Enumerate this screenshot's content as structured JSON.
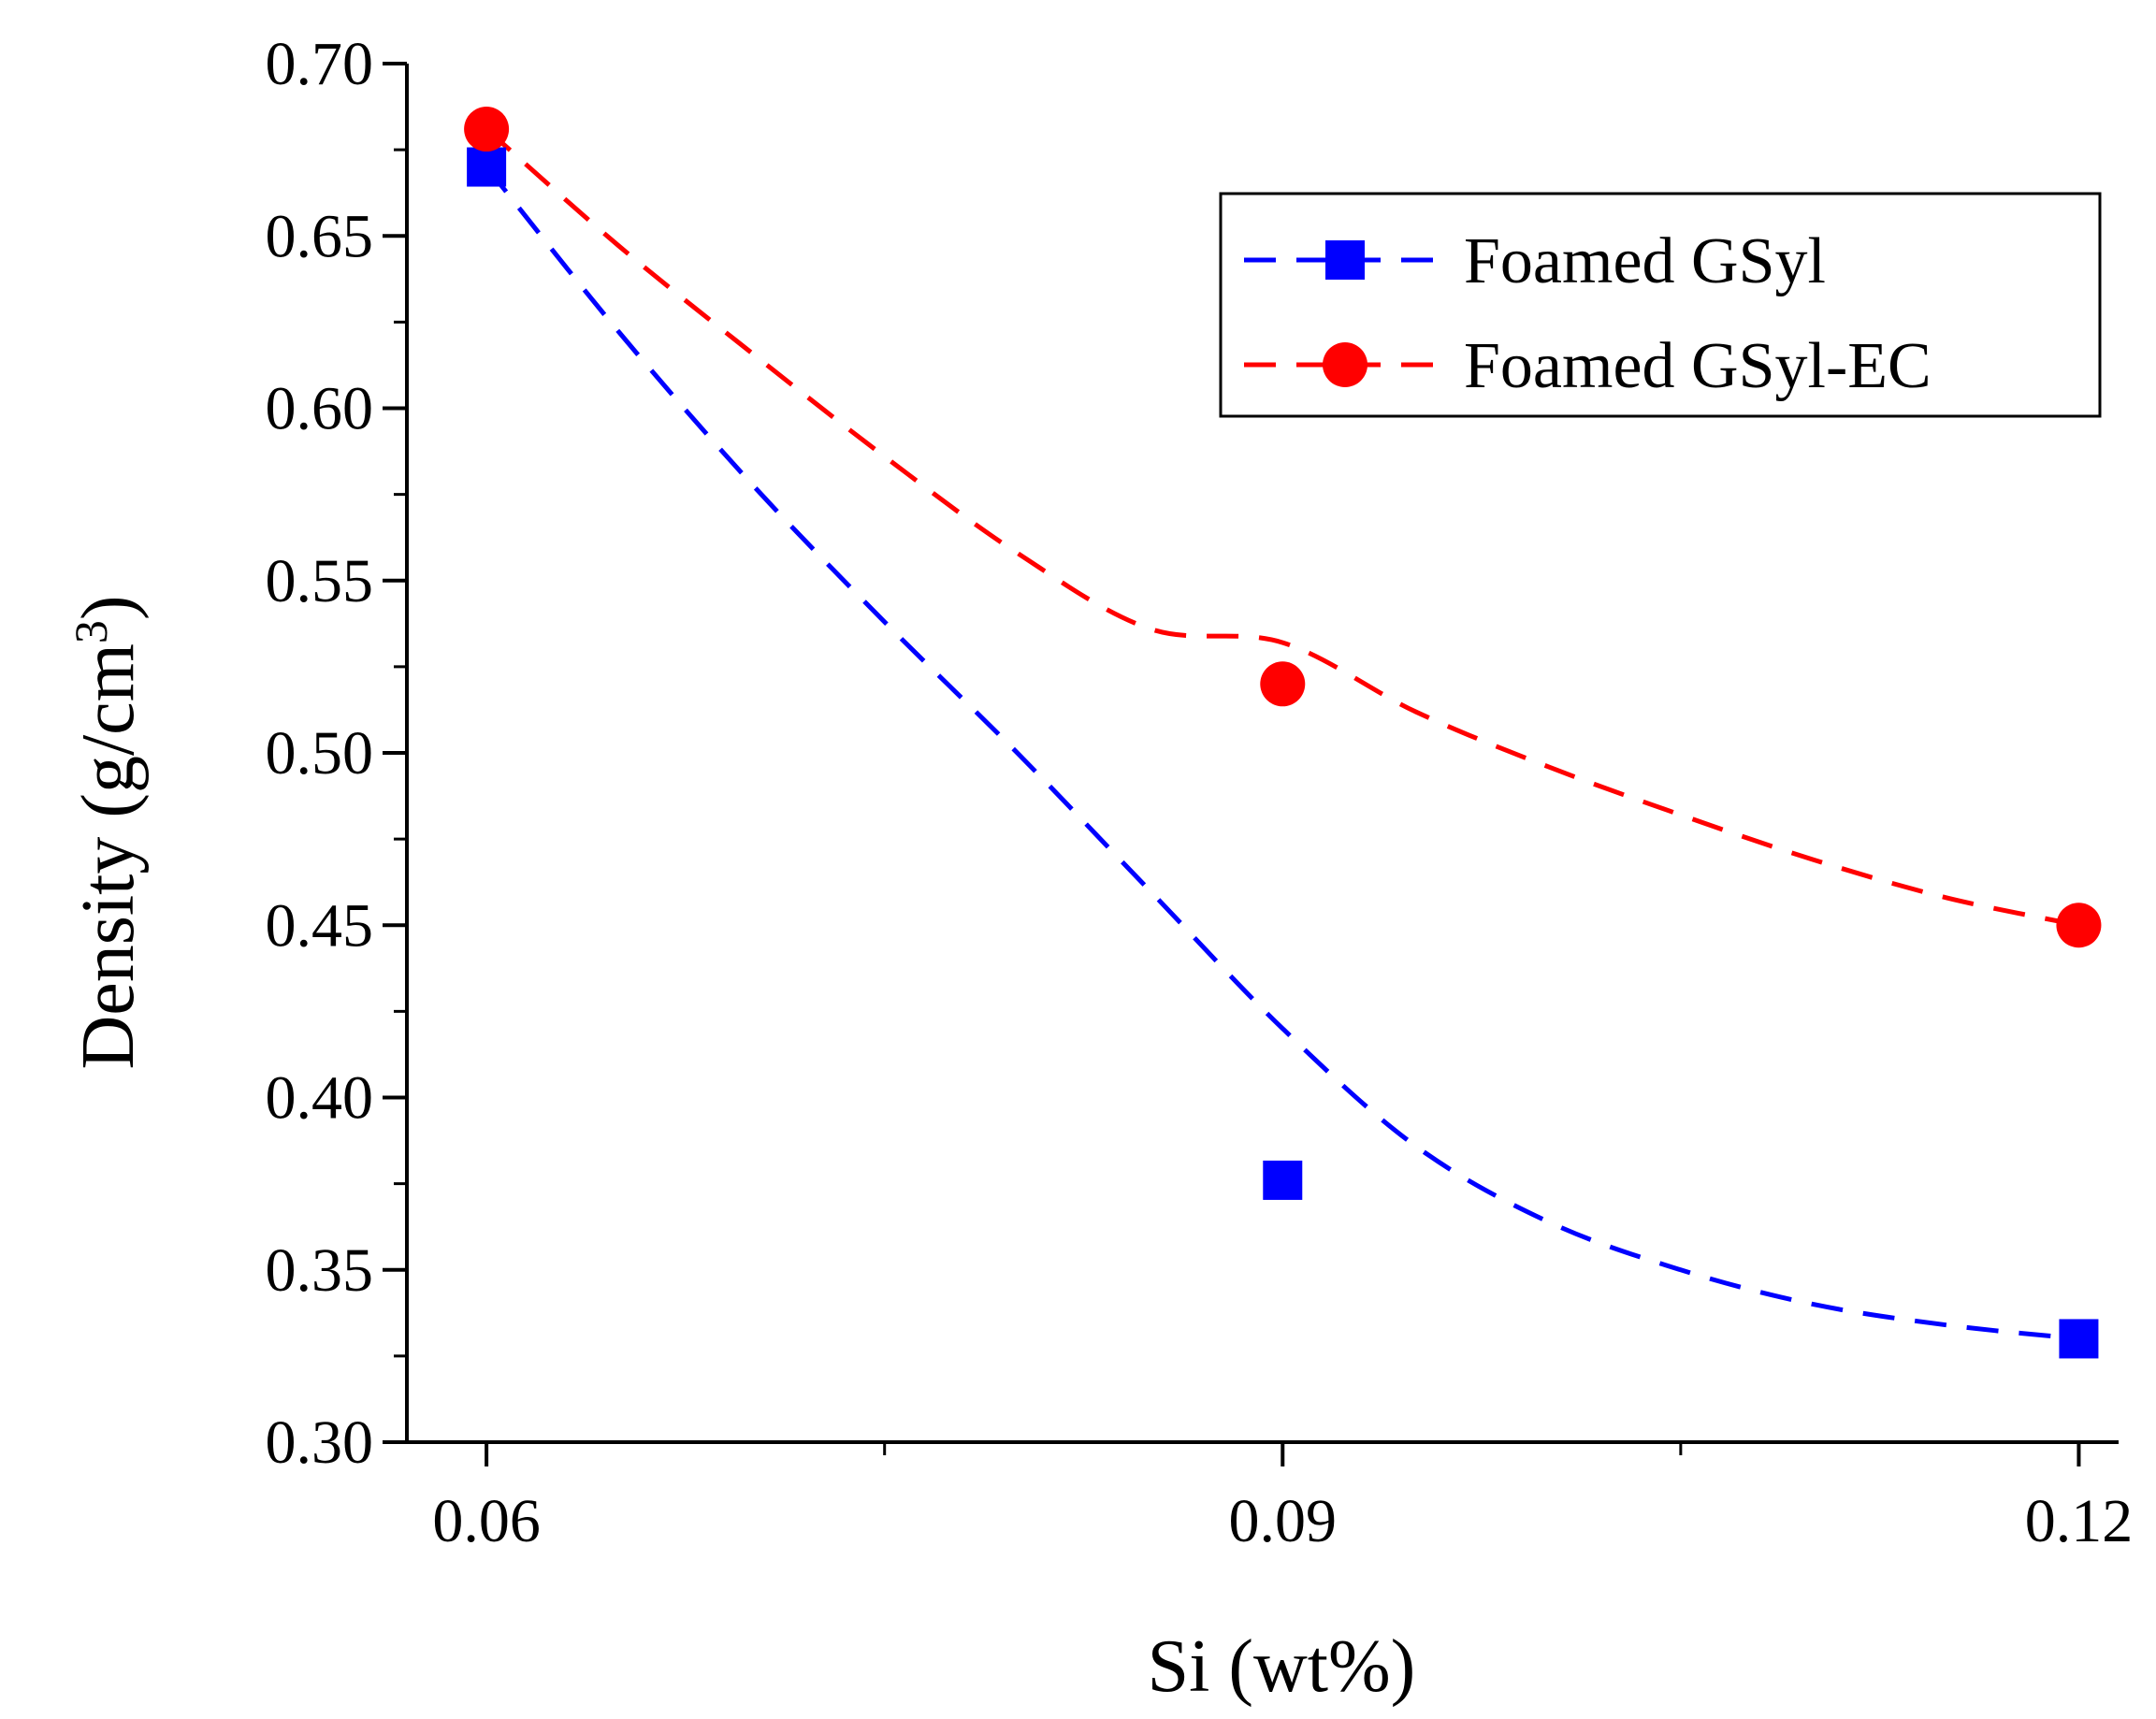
{
  "chart_data": {
    "type": "scatter",
    "xlabel": "Si (wt%)",
    "ylabel_main": "Density (g/cm",
    "ylabel_sup": "3",
    "ylabel_close": ")",
    "x_ticks": [
      "0.06",
      "0.09",
      "0.12"
    ],
    "x_tick_values": [
      0.06,
      0.09,
      0.12
    ],
    "y_ticks": [
      "0.30",
      "0.35",
      "0.40",
      "0.45",
      "0.50",
      "0.55",
      "0.60",
      "0.65",
      "0.70"
    ],
    "y_tick_values": [
      0.3,
      0.35,
      0.4,
      0.45,
      0.5,
      0.55,
      0.6,
      0.65,
      0.7
    ],
    "xlim": [
      0.057,
      0.1215
    ],
    "ylim": [
      0.3,
      0.7
    ],
    "grid": false,
    "legend_position": "top-right",
    "series": [
      {
        "name": "Foamed GSyl",
        "marker": "square",
        "color": "#0000ff",
        "x": [
          0.06,
          0.09,
          0.12
        ],
        "y": [
          0.67,
          0.376,
          0.33
        ],
        "fit_x": [
          0.06,
          0.065,
          0.07,
          0.075,
          0.08,
          0.085,
          0.09,
          0.095,
          0.1,
          0.105,
          0.11,
          0.115,
          0.12
        ],
        "fit_y": [
          0.67,
          0.622,
          0.578,
          0.538,
          0.5,
          0.46,
          0.42,
          0.386,
          0.364,
          0.35,
          0.34,
          0.334,
          0.33
        ]
      },
      {
        "name": "Foamed GSyl-EC",
        "marker": "circle",
        "color": "#ff0000",
        "x": [
          0.06,
          0.09,
          0.12
        ],
        "y": [
          0.681,
          0.52,
          0.45
        ],
        "fit_x": [
          0.06,
          0.065,
          0.07,
          0.075,
          0.08,
          0.085,
          0.09,
          0.095,
          0.1,
          0.105,
          0.11,
          0.115,
          0.12
        ],
        "fit_y": [
          0.681,
          0.647,
          0.616,
          0.586,
          0.558,
          0.536,
          0.532,
          0.512,
          0.496,
          0.482,
          0.469,
          0.458,
          0.45
        ]
      }
    ]
  }
}
